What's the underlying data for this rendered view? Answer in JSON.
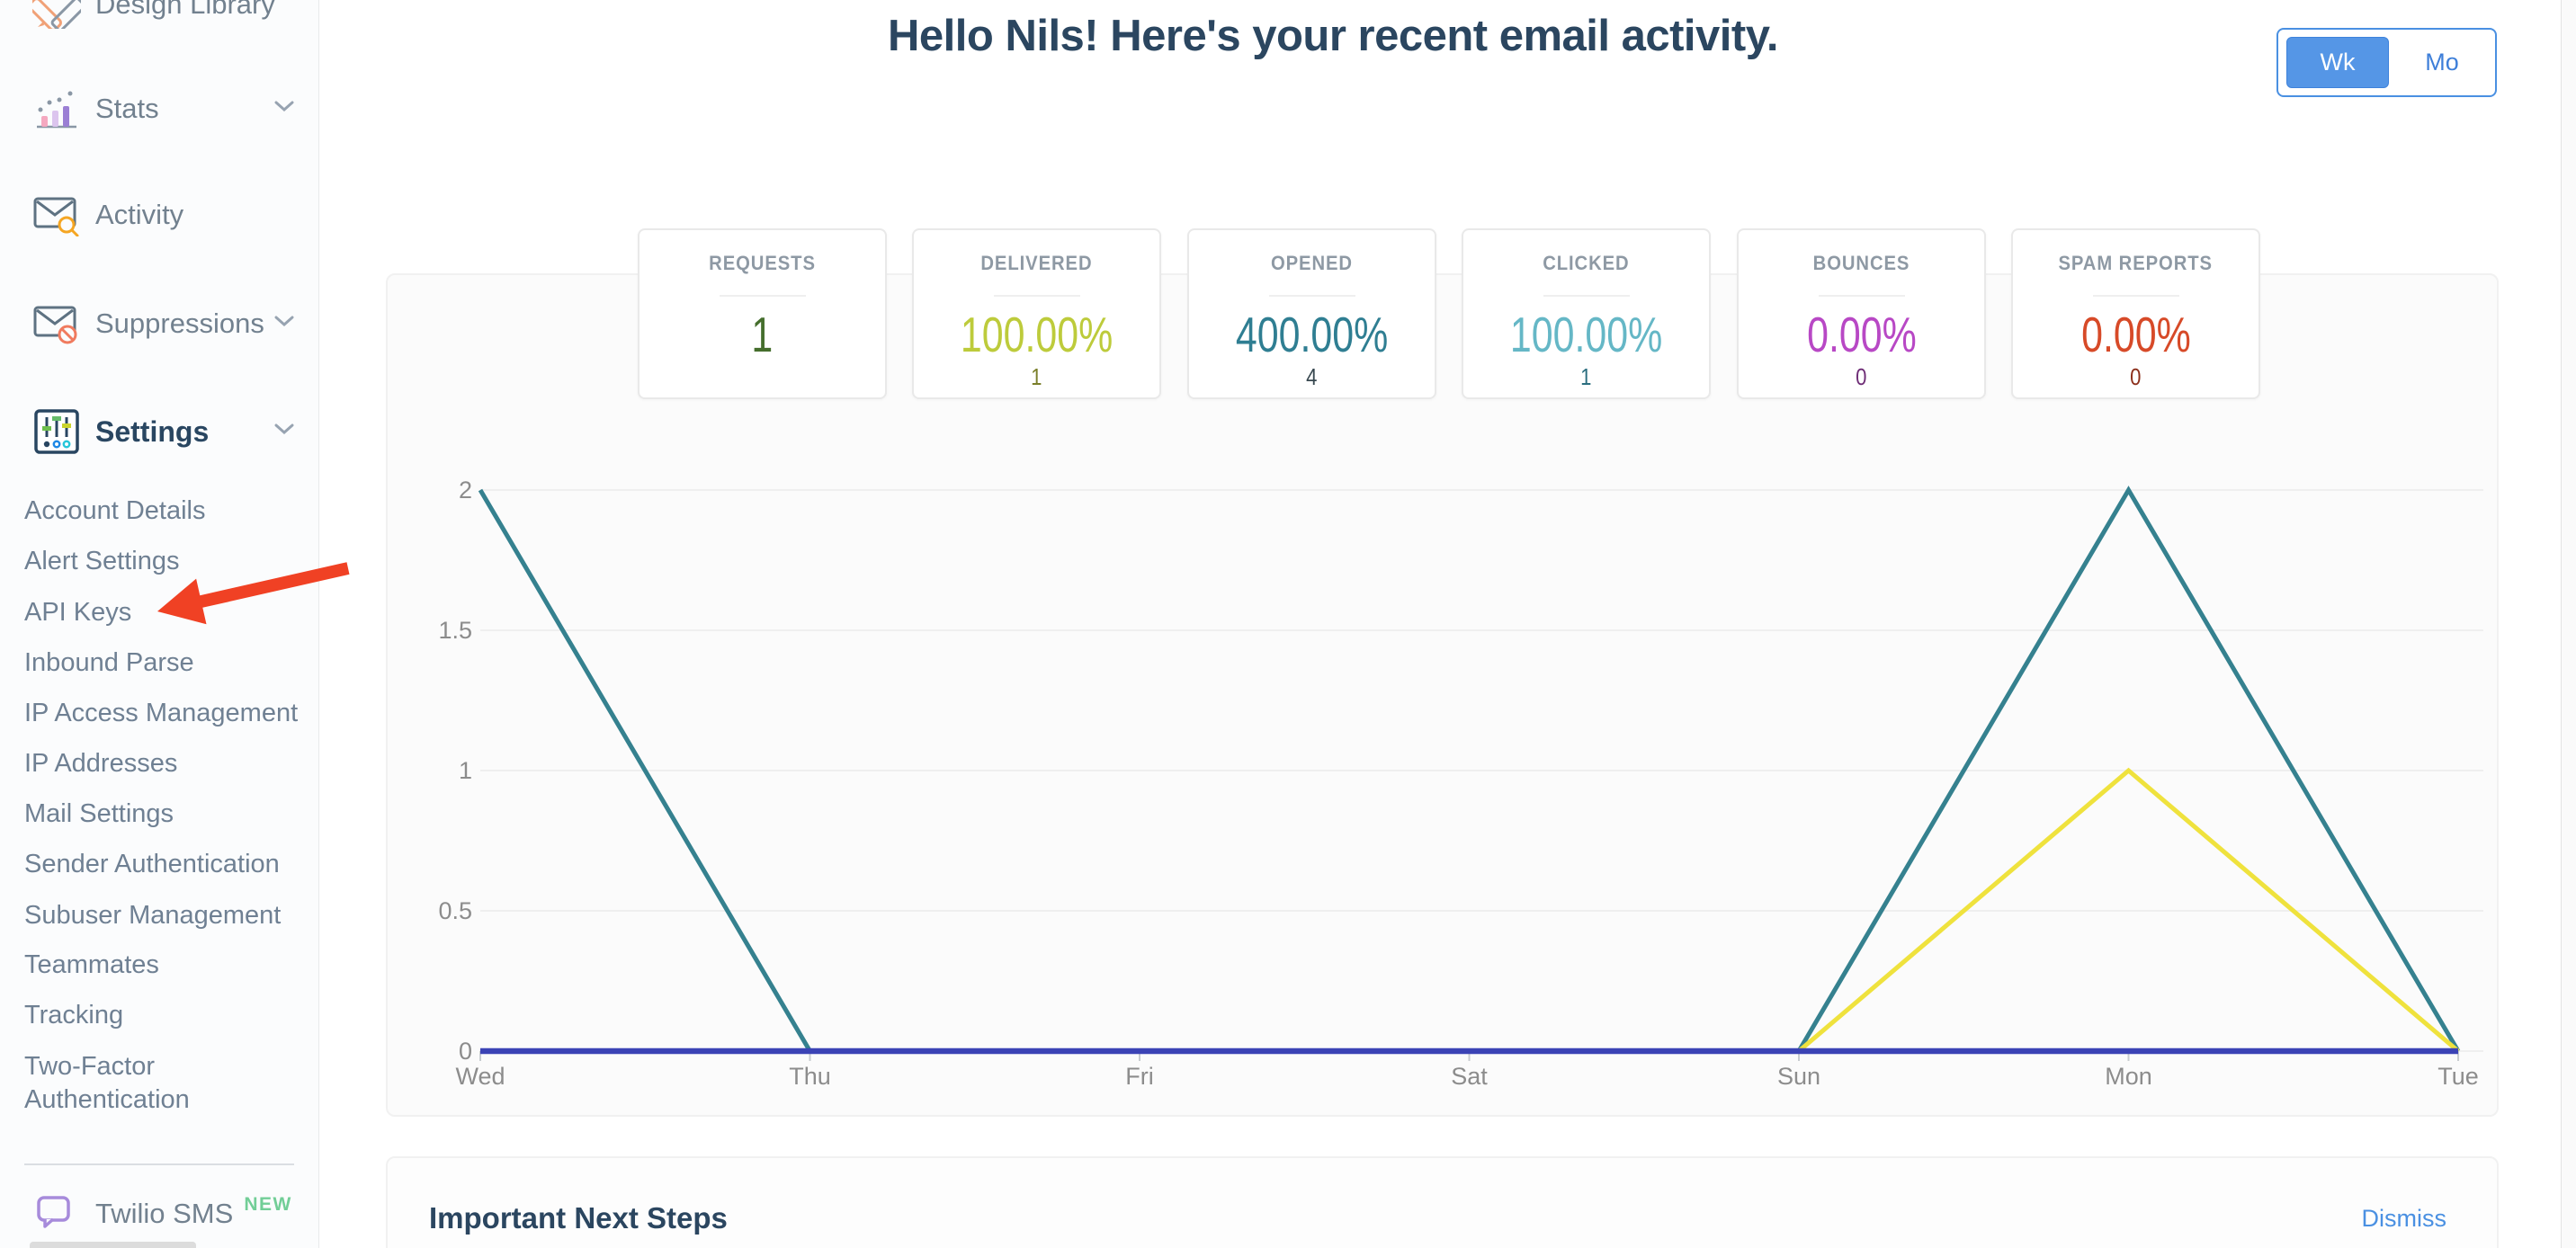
{
  "sidebar": {
    "items": [
      {
        "label": "Design Library"
      },
      {
        "label": "Stats",
        "chevron": true
      },
      {
        "label": "Activity"
      },
      {
        "label": "Suppressions",
        "chevron": true
      },
      {
        "label": "Settings",
        "chevron": true,
        "active": true
      }
    ],
    "settings_submenu": [
      "Account Details",
      "Alert Settings",
      "API Keys",
      "Inbound Parse",
      "IP Access Management",
      "IP Addresses",
      "Mail Settings",
      "Sender Authentication",
      "Subuser Management",
      "Teammates",
      "Tracking",
      "Two-Factor Authentication"
    ],
    "promo": {
      "label": "Twilio SMS",
      "badge": "NEW"
    }
  },
  "header": {
    "title": "Hello Nils! Here's your recent email activity.",
    "toggle": {
      "week": "Wk",
      "month": "Mo",
      "selected": "Wk",
      "accent_color": "#4A90E2"
    }
  },
  "stats_cards": [
    {
      "title": "REQUESTS",
      "value": "1",
      "sub": "",
      "color": "#456E2D",
      "sub_color": ""
    },
    {
      "title": "DELIVERED",
      "value": "100.00%",
      "sub": "1",
      "color": "#BDCB3B",
      "sub_color": "#7A7F2A"
    },
    {
      "title": "OPENED",
      "value": "400.00%",
      "sub": "4",
      "color": "#2F7E92",
      "sub_color": "#37474F"
    },
    {
      "title": "CLICKED",
      "value": "100.00%",
      "sub": "1",
      "color": "#65B7C6",
      "sub_color": "#2B6E7F"
    },
    {
      "title": "BOUNCES",
      "value": "0.00%",
      "sub": "0",
      "color": "#B848C5",
      "sub_color": "#6E2D76"
    },
    {
      "title": "SPAM REPORTS",
      "value": "0.00%",
      "sub": "0",
      "color": "#D74A28",
      "sub_color": "#8C2F1B"
    }
  ],
  "chart_data": {
    "type": "line",
    "x": [
      "Wed",
      "Thu",
      "Fri",
      "Sat",
      "Sun",
      "Mon",
      "Tue"
    ],
    "yticks": [
      2,
      1.5,
      1,
      0.5,
      0
    ],
    "ylim": [
      0,
      2
    ],
    "grid": true,
    "legend": "none",
    "series": [
      {
        "name": "teal",
        "color": "#35818F",
        "width": 5,
        "values": [
          2,
          0,
          0,
          0,
          0,
          2,
          0
        ]
      },
      {
        "name": "yellow",
        "color": "#EFE23D",
        "width": 5,
        "values": [
          0,
          0,
          0,
          0,
          0,
          1,
          0
        ]
      },
      {
        "name": "indigo",
        "color": "#3B43B5",
        "width": 6.5,
        "values": [
          0,
          0,
          0,
          0,
          0,
          0,
          0
        ]
      }
    ]
  },
  "next_steps": {
    "title": "Important Next Steps",
    "dismiss": "Dismiss"
  }
}
